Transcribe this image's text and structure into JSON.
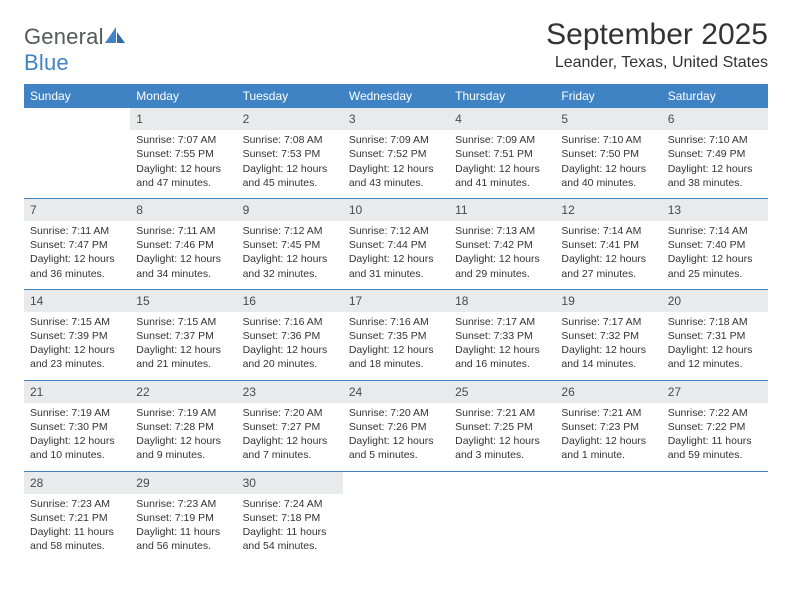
{
  "brand": {
    "word1": "General",
    "word2": "Blue"
  },
  "title": "September 2025",
  "location": "Leander, Texas, United States",
  "colors": {
    "header_bg": "#3f83c4",
    "header_text": "#ffffff",
    "daynum_bg": "#e9eaeb",
    "rule": "#3f83c4",
    "body_text": "#333333"
  },
  "labels": {
    "sunrise": "Sunrise:",
    "sunset": "Sunset:",
    "daylight": "Daylight:"
  },
  "weekdays": [
    "Sunday",
    "Monday",
    "Tuesday",
    "Wednesday",
    "Thursday",
    "Friday",
    "Saturday"
  ],
  "weeks": [
    [
      null,
      {
        "n": "1",
        "sunrise": "7:07 AM",
        "sunset": "7:55 PM",
        "daylight": "12 hours and 47 minutes."
      },
      {
        "n": "2",
        "sunrise": "7:08 AM",
        "sunset": "7:53 PM",
        "daylight": "12 hours and 45 minutes."
      },
      {
        "n": "3",
        "sunrise": "7:09 AM",
        "sunset": "7:52 PM",
        "daylight": "12 hours and 43 minutes."
      },
      {
        "n": "4",
        "sunrise": "7:09 AM",
        "sunset": "7:51 PM",
        "daylight": "12 hours and 41 minutes."
      },
      {
        "n": "5",
        "sunrise": "7:10 AM",
        "sunset": "7:50 PM",
        "daylight": "12 hours and 40 minutes."
      },
      {
        "n": "6",
        "sunrise": "7:10 AM",
        "sunset": "7:49 PM",
        "daylight": "12 hours and 38 minutes."
      }
    ],
    [
      {
        "n": "7",
        "sunrise": "7:11 AM",
        "sunset": "7:47 PM",
        "daylight": "12 hours and 36 minutes."
      },
      {
        "n": "8",
        "sunrise": "7:11 AM",
        "sunset": "7:46 PM",
        "daylight": "12 hours and 34 minutes."
      },
      {
        "n": "9",
        "sunrise": "7:12 AM",
        "sunset": "7:45 PM",
        "daylight": "12 hours and 32 minutes."
      },
      {
        "n": "10",
        "sunrise": "7:12 AM",
        "sunset": "7:44 PM",
        "daylight": "12 hours and 31 minutes."
      },
      {
        "n": "11",
        "sunrise": "7:13 AM",
        "sunset": "7:42 PM",
        "daylight": "12 hours and 29 minutes."
      },
      {
        "n": "12",
        "sunrise": "7:14 AM",
        "sunset": "7:41 PM",
        "daylight": "12 hours and 27 minutes."
      },
      {
        "n": "13",
        "sunrise": "7:14 AM",
        "sunset": "7:40 PM",
        "daylight": "12 hours and 25 minutes."
      }
    ],
    [
      {
        "n": "14",
        "sunrise": "7:15 AM",
        "sunset": "7:39 PM",
        "daylight": "12 hours and 23 minutes."
      },
      {
        "n": "15",
        "sunrise": "7:15 AM",
        "sunset": "7:37 PM",
        "daylight": "12 hours and 21 minutes."
      },
      {
        "n": "16",
        "sunrise": "7:16 AM",
        "sunset": "7:36 PM",
        "daylight": "12 hours and 20 minutes."
      },
      {
        "n": "17",
        "sunrise": "7:16 AM",
        "sunset": "7:35 PM",
        "daylight": "12 hours and 18 minutes."
      },
      {
        "n": "18",
        "sunrise": "7:17 AM",
        "sunset": "7:33 PM",
        "daylight": "12 hours and 16 minutes."
      },
      {
        "n": "19",
        "sunrise": "7:17 AM",
        "sunset": "7:32 PM",
        "daylight": "12 hours and 14 minutes."
      },
      {
        "n": "20",
        "sunrise": "7:18 AM",
        "sunset": "7:31 PM",
        "daylight": "12 hours and 12 minutes."
      }
    ],
    [
      {
        "n": "21",
        "sunrise": "7:19 AM",
        "sunset": "7:30 PM",
        "daylight": "12 hours and 10 minutes."
      },
      {
        "n": "22",
        "sunrise": "7:19 AM",
        "sunset": "7:28 PM",
        "daylight": "12 hours and 9 minutes."
      },
      {
        "n": "23",
        "sunrise": "7:20 AM",
        "sunset": "7:27 PM",
        "daylight": "12 hours and 7 minutes."
      },
      {
        "n": "24",
        "sunrise": "7:20 AM",
        "sunset": "7:26 PM",
        "daylight": "12 hours and 5 minutes."
      },
      {
        "n": "25",
        "sunrise": "7:21 AM",
        "sunset": "7:25 PM",
        "daylight": "12 hours and 3 minutes."
      },
      {
        "n": "26",
        "sunrise": "7:21 AM",
        "sunset": "7:23 PM",
        "daylight": "12 hours and 1 minute."
      },
      {
        "n": "27",
        "sunrise": "7:22 AM",
        "sunset": "7:22 PM",
        "daylight": "11 hours and 59 minutes."
      }
    ],
    [
      {
        "n": "28",
        "sunrise": "7:23 AM",
        "sunset": "7:21 PM",
        "daylight": "11 hours and 58 minutes."
      },
      {
        "n": "29",
        "sunrise": "7:23 AM",
        "sunset": "7:19 PM",
        "daylight": "11 hours and 56 minutes."
      },
      {
        "n": "30",
        "sunrise": "7:24 AM",
        "sunset": "7:18 PM",
        "daylight": "11 hours and 54 minutes."
      },
      null,
      null,
      null,
      null
    ]
  ]
}
